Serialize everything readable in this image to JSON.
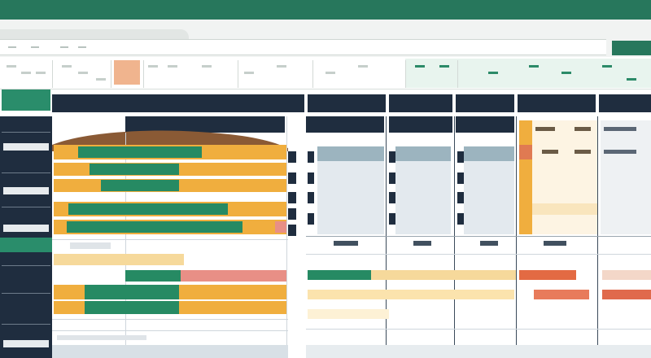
{
  "title_bar": {
    "title": ""
  },
  "table": {
    "headers": [
      {
        "id": "main",
        "label": ""
      },
      {
        "id": "col-a",
        "label": ""
      },
      {
        "id": "col-b",
        "label": ""
      },
      {
        "id": "col-c",
        "label": ""
      },
      {
        "id": "col-d",
        "label": ""
      },
      {
        "id": "col-e",
        "label": ""
      }
    ]
  },
  "sidebar": {
    "items": [
      "",
      "",
      "",
      "",
      ""
    ]
  },
  "colors": {
    "brand_green": "#27775c",
    "header_navy": "#1f2d3f",
    "bar_orange": "#f0ae3e",
    "bar_green": "#268a63",
    "bar_pink": "#e88f86",
    "accent_peach": "#f0b48e"
  },
  "icons": [
    "menu-icon",
    "tab-icon",
    "ribbon-tool-icon"
  ]
}
